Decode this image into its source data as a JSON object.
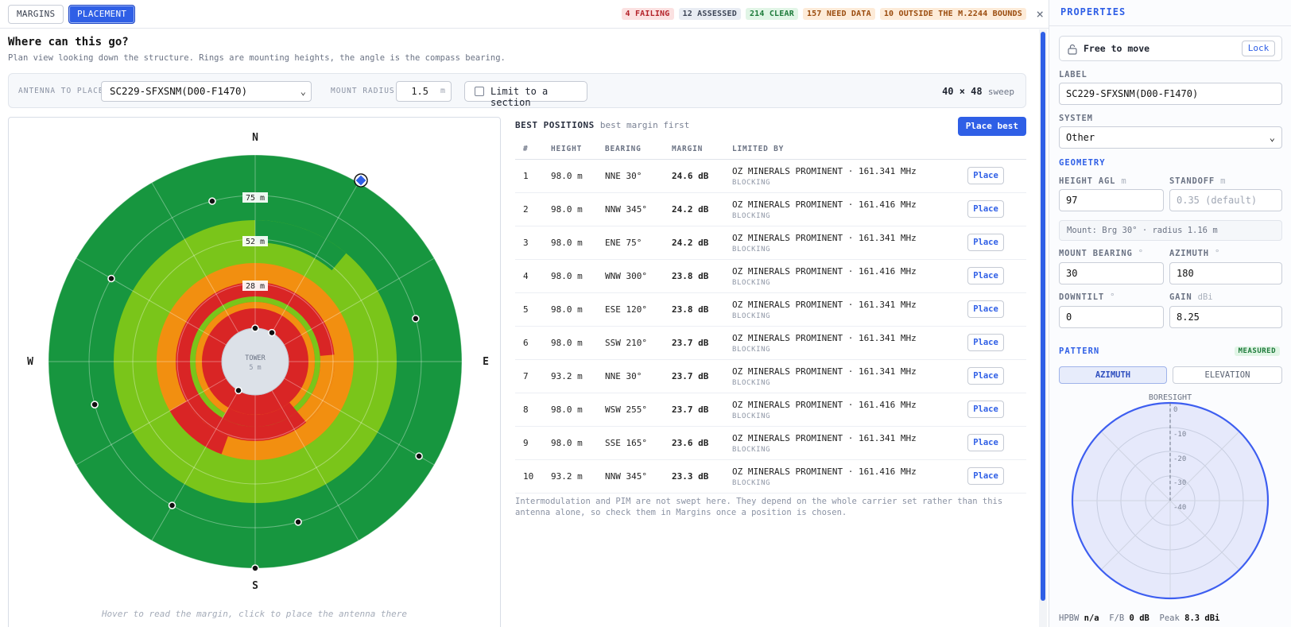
{
  "topbar": {
    "tabs": [
      {
        "label": "MARGINS",
        "active": false
      },
      {
        "label": "PLACEMENT",
        "active": true
      }
    ],
    "badges": [
      {
        "label": "4 FAILING",
        "bg": "#fbe1e1",
        "fg": "#b4232a"
      },
      {
        "label": "12 ASSESSED",
        "bg": "#e8ecf3",
        "fg": "#3d4557"
      },
      {
        "label": "214 CLEAR",
        "bg": "#e1f5e6",
        "fg": "#1d7a3a"
      },
      {
        "label": "157 NEED DATA",
        "bg": "#fdebd8",
        "fg": "#9a4b0d"
      },
      {
        "label": "10 OUTSIDE THE M.2244 BOUNDS",
        "bg": "#fdebd8",
        "fg": "#9a4b0d"
      }
    ],
    "close": "×"
  },
  "main": {
    "title": "Where can this go?",
    "subtitle": "Plan view looking down the structure. Rings are mounting heights, the angle is the compass bearing."
  },
  "controls": {
    "antenna_label": "ANTENNA TO PLACE",
    "antenna_value": "SC229-SFXSNM(D00-F1470)",
    "mount_radius_label": "MOUNT RADIUS",
    "mount_radius_value": "1.5",
    "mount_radius_unit": "m",
    "limit_label": "Limit to a section",
    "sweep_value": "40 × 48",
    "sweep_label": "sweep"
  },
  "polar": {
    "compass": {
      "n": "N",
      "e": "E",
      "s": "S",
      "w": "W"
    },
    "ring_labels": [
      "75 m",
      "52 m",
      "28 m"
    ],
    "center_label": "TOWER",
    "center_sub": "5 m",
    "hint": "Hover to read the margin, click to place the antenna there",
    "colors": {
      "dark_green": "#17963f",
      "light_green": "#7ac51a",
      "orange": "#f28f10",
      "red": "#d92525",
      "tower": "#dce1e8",
      "marker": "#2f5fe6"
    }
  },
  "best": {
    "title": "BEST POSITIONS",
    "subtitle": "best margin first",
    "place_best": "Place best",
    "headers": [
      "#",
      "HEIGHT",
      "BEARING",
      "MARGIN",
      "LIMITED BY"
    ],
    "place_label": "Place",
    "rows": [
      {
        "n": "1",
        "height": "98.0 m",
        "bearing": "NNE 30°",
        "margin": "24.6 dB",
        "limit": "OZ MINERALS PROMINENT · 161.341 MHz",
        "type": "BLOCKING"
      },
      {
        "n": "2",
        "height": "98.0 m",
        "bearing": "NNW 345°",
        "margin": "24.2 dB",
        "limit": "OZ MINERALS PROMINENT · 161.416 MHz",
        "type": "BLOCKING"
      },
      {
        "n": "3",
        "height": "98.0 m",
        "bearing": "ENE 75°",
        "margin": "24.2 dB",
        "limit": "OZ MINERALS PROMINENT · 161.341 MHz",
        "type": "BLOCKING"
      },
      {
        "n": "4",
        "height": "98.0 m",
        "bearing": "WNW 300°",
        "margin": "23.8 dB",
        "limit": "OZ MINERALS PROMINENT · 161.416 MHz",
        "type": "BLOCKING"
      },
      {
        "n": "5",
        "height": "98.0 m",
        "bearing": "ESE 120°",
        "margin": "23.8 dB",
        "limit": "OZ MINERALS PROMINENT · 161.341 MHz",
        "type": "BLOCKING"
      },
      {
        "n": "6",
        "height": "98.0 m",
        "bearing": "SSW 210°",
        "margin": "23.7 dB",
        "limit": "OZ MINERALS PROMINENT · 161.341 MHz",
        "type": "BLOCKING"
      },
      {
        "n": "7",
        "height": "93.2 m",
        "bearing": "NNE 30°",
        "margin": "23.7 dB",
        "limit": "OZ MINERALS PROMINENT · 161.341 MHz",
        "type": "BLOCKING"
      },
      {
        "n": "8",
        "height": "98.0 m",
        "bearing": "WSW 255°",
        "margin": "23.7 dB",
        "limit": "OZ MINERALS PROMINENT · 161.416 MHz",
        "type": "BLOCKING"
      },
      {
        "n": "9",
        "height": "98.0 m",
        "bearing": "SSE 165°",
        "margin": "23.6 dB",
        "limit": "OZ MINERALS PROMINENT · 161.341 MHz",
        "type": "BLOCKING"
      },
      {
        "n": "10",
        "height": "93.2 m",
        "bearing": "NNW 345°",
        "margin": "23.3 dB",
        "limit": "OZ MINERALS PROMINENT · 161.416 MHz",
        "type": "BLOCKING"
      }
    ],
    "footnote": "Intermodulation and PIM are not swept here. They depend on the whole carrier set rather than this antenna alone, so check them in Margins once a position is chosen."
  },
  "props": {
    "title": "PROPERTIES",
    "lock_status": "Free to move",
    "lock_button": "Lock",
    "label_label": "LABEL",
    "label_value": "SC229-SFXSNM(D00-F1470)",
    "system_label": "SYSTEM",
    "system_value": "Other",
    "geometry": "GEOMETRY",
    "height_label": "HEIGHT AGL",
    "height_unit": "m",
    "height_value": "97",
    "standoff_label": "STANDOFF",
    "standoff_unit": "m",
    "standoff_placeholder": "0.35 (default)",
    "mount_info": "Mount: Brg 30° · radius 1.16 m",
    "mount_bearing_label": "MOUNT BEARING",
    "mount_bearing_unit": "°",
    "mount_bearing_value": "30",
    "azimuth_label": "AZIMUTH",
    "azimuth_unit": "°",
    "azimuth_value": "180",
    "downtilt_label": "DOWNTILT",
    "downtilt_unit": "°",
    "downtilt_value": "0",
    "gain_label": "GAIN",
    "gain_unit": "dBi",
    "gain_value": "8.25",
    "pattern": "PATTERN",
    "pattern_badge": "MEASURED",
    "pattern_tabs": [
      {
        "label": "AZIMUTH",
        "active": true
      },
      {
        "label": "ELEVATION",
        "active": false
      }
    ],
    "boresight": "BORESIGHT",
    "db_rings": [
      "0",
      "-10",
      "-20",
      "-30",
      "-40"
    ],
    "hpbw_label": "HPBW",
    "hpbw_value": "n/a",
    "fb_label": "F/B",
    "fb_value": "0 dB",
    "peak_label": "Peak",
    "peak_value": "8.3 dBi"
  }
}
